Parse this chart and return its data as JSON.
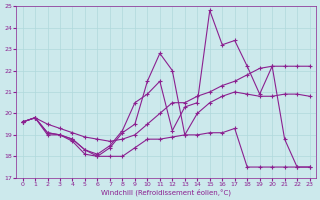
{
  "xlabel": "Windchill (Refroidissement éolien,°C)",
  "xlim": [
    -0.5,
    23.5
  ],
  "ylim": [
    17,
    25
  ],
  "yticks": [
    17,
    18,
    19,
    20,
    21,
    22,
    23,
    24,
    25
  ],
  "xticks": [
    0,
    1,
    2,
    3,
    4,
    5,
    6,
    7,
    8,
    9,
    10,
    11,
    12,
    13,
    14,
    15,
    16,
    17,
    18,
    19,
    20,
    21,
    22,
    23
  ],
  "background_color": "#cce9ec",
  "line_color": "#8b2090",
  "grid_color": "#b0d8dc",
  "series": {
    "line1_x": [
      0,
      1,
      2,
      3,
      4,
      5,
      6,
      7,
      8,
      9,
      10,
      11,
      12,
      13,
      14,
      15,
      16,
      17,
      18,
      19,
      20,
      21,
      22,
      23
    ],
    "line1_y": [
      19.6,
      19.8,
      19.1,
      19.0,
      18.7,
      18.1,
      18.0,
      18.0,
      18.0,
      18.4,
      18.8,
      18.8,
      18.9,
      19.0,
      19.0,
      19.1,
      19.1,
      19.3,
      17.5,
      17.5,
      17.5,
      17.5,
      17.5,
      17.5
    ],
    "line2_x": [
      0,
      1,
      2,
      3,
      4,
      5,
      6,
      7,
      8,
      9,
      10,
      11,
      12,
      13,
      14,
      15,
      16,
      17,
      18,
      19,
      20,
      21,
      22,
      23
    ],
    "line2_y": [
      19.6,
      19.8,
      19.5,
      19.3,
      19.1,
      18.9,
      18.8,
      18.7,
      18.8,
      19.0,
      19.5,
      20.0,
      20.5,
      20.5,
      20.8,
      21.0,
      21.3,
      21.5,
      21.8,
      22.1,
      22.2,
      22.2,
      22.2,
      22.2
    ],
    "line3_x": [
      0,
      1,
      2,
      3,
      4,
      5,
      6,
      7,
      8,
      9,
      10,
      11,
      12,
      13,
      14,
      15,
      16,
      17,
      18,
      19,
      20,
      21,
      22,
      23
    ],
    "line3_y": [
      19.6,
      19.8,
      19.1,
      19.0,
      18.8,
      18.3,
      18.0,
      18.4,
      19.1,
      19.5,
      21.5,
      22.8,
      22.0,
      19.0,
      20.0,
      20.5,
      20.8,
      21.0,
      20.9,
      20.8,
      20.8,
      20.9,
      20.9,
      20.8
    ],
    "line4_x": [
      0,
      1,
      2,
      3,
      4,
      5,
      6,
      7,
      8,
      9,
      10,
      11,
      12,
      13,
      14,
      15,
      16,
      17,
      18,
      19,
      20,
      21,
      22,
      23
    ],
    "line4_y": [
      19.6,
      19.8,
      19.0,
      19.0,
      18.8,
      18.3,
      18.1,
      18.5,
      19.2,
      20.5,
      20.9,
      21.5,
      19.2,
      20.3,
      20.5,
      24.8,
      23.2,
      23.4,
      22.2,
      20.9,
      22.2,
      18.8,
      17.5,
      17.5
    ]
  }
}
